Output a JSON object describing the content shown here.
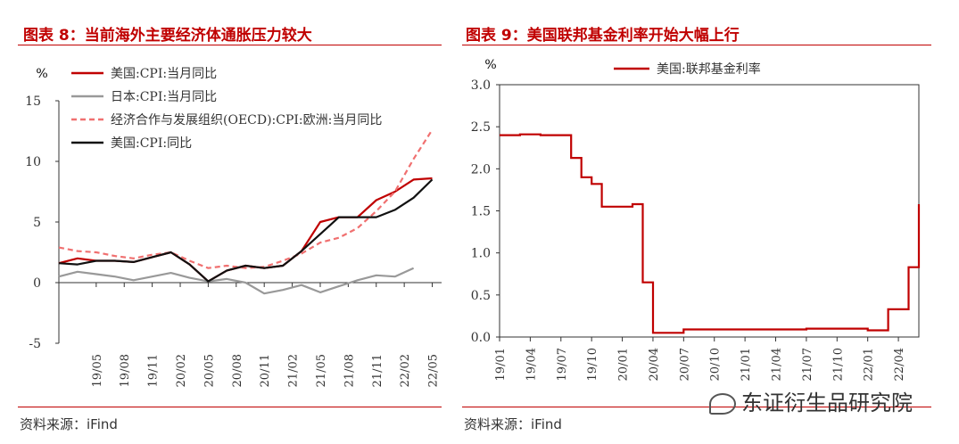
{
  "left_figure": {
    "title": "图表 8：当前海外主要经济体通胀压力较大",
    "source": "资料来源：iFind"
  },
  "right_figure": {
    "title": "图表 9：美国联邦基金利率开始大幅上行",
    "source": "资料来源：iFind"
  },
  "watermark": "东证衍生品研究院",
  "colors": {
    "title_red": "#c00000",
    "series_red": "#c00000",
    "series_gray": "#999999",
    "series_pink": "#f07070",
    "series_black": "#111111"
  },
  "chart_data": [
    {
      "type": "line",
      "unit_label": "%",
      "ylim": [
        -5,
        15
      ],
      "yticks": [
        -5,
        0,
        5,
        10,
        15
      ],
      "grid": false,
      "legend_position": "top-left",
      "x_tick_labels": [
        "19/05",
        "19/08",
        "19/11",
        "20/02",
        "20/05",
        "20/08",
        "20/11",
        "21/02",
        "21/05",
        "21/08",
        "21/11",
        "22/02",
        "22/05"
      ],
      "x": [
        "19/01",
        "19/03",
        "19/05",
        "19/07",
        "19/09",
        "19/11",
        "20/01",
        "20/03",
        "20/05",
        "20/07",
        "20/09",
        "20/11",
        "21/01",
        "21/03",
        "21/05",
        "21/07",
        "21/09",
        "21/11",
        "22/01",
        "22/03",
        "22/05"
      ],
      "series": [
        {
          "name": "美国:CPI:当月同比",
          "color": "#c00000",
          "dash": "solid",
          "values": [
            1.6,
            2.0,
            1.8,
            1.8,
            1.7,
            2.1,
            2.5,
            1.5,
            0.1,
            1.0,
            1.4,
            1.2,
            1.4,
            2.6,
            5.0,
            5.4,
            5.4,
            6.8,
            7.5,
            8.5,
            8.6
          ]
        },
        {
          "name": "日本:CPI:当月同比",
          "color": "#999999",
          "dash": "solid",
          "values": [
            0.5,
            0.9,
            0.7,
            0.5,
            0.2,
            0.5,
            0.8,
            0.4,
            0.1,
            0.3,
            0.0,
            -0.9,
            -0.6,
            -0.2,
            -0.8,
            -0.3,
            0.2,
            0.6,
            0.5,
            1.2,
            null
          ]
        },
        {
          "name": "经济合作与发展组织(OECD):CPI:欧洲:当月同比",
          "color": "#f07070",
          "dash": "dashed",
          "values": [
            2.9,
            2.6,
            2.5,
            2.2,
            2.0,
            2.3,
            2.5,
            1.8,
            1.2,
            1.4,
            1.2,
            1.3,
            1.8,
            2.4,
            3.3,
            3.7,
            4.5,
            5.9,
            7.5,
            10.2,
            12.6
          ]
        },
        {
          "name": "美国:CPI:同比",
          "color": "#111111",
          "dash": "solid",
          "values": [
            1.6,
            1.5,
            1.8,
            1.8,
            1.7,
            2.1,
            2.5,
            1.5,
            0.1,
            1.0,
            1.4,
            1.2,
            1.4,
            2.6,
            4.0,
            5.4,
            5.4,
            5.4,
            6.0,
            7.0,
            8.5
          ]
        }
      ]
    },
    {
      "type": "line",
      "unit_label": "%",
      "ylim": [
        0,
        3
      ],
      "yticks": [
        0.0,
        0.5,
        1.0,
        1.5,
        2.0,
        2.5,
        3.0
      ],
      "grid": false,
      "legend_position": "top",
      "x_tick_labels": [
        "19/01",
        "19/04",
        "19/07",
        "19/10",
        "20/01",
        "20/04",
        "20/07",
        "20/10",
        "21/01",
        "21/04",
        "21/07",
        "21/10",
        "22/01",
        "22/04"
      ],
      "x": [
        "19/01",
        "19/03",
        "19/05",
        "19/07",
        "19/08",
        "19/09",
        "19/10",
        "19/11",
        "20/02",
        "20/03",
        "20/04",
        "20/07",
        "21/07",
        "22/01",
        "22/03",
        "22/05",
        "22/06"
      ],
      "series": [
        {
          "name": "美国:联邦基金利率",
          "color": "#c00000",
          "dash": "solid",
          "values": [
            2.4,
            2.41,
            2.4,
            2.4,
            2.13,
            1.9,
            1.82,
            1.55,
            1.58,
            0.65,
            0.05,
            0.09,
            0.1,
            0.08,
            0.33,
            0.83,
            1.58
          ]
        }
      ]
    }
  ]
}
